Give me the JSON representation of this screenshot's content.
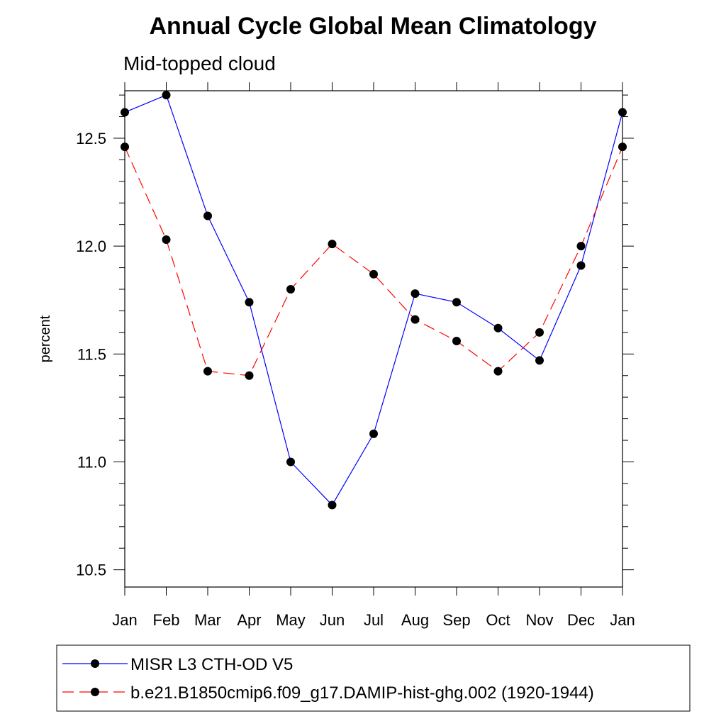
{
  "chart_data": {
    "type": "line",
    "title": "Annual Cycle Global Mean Climatology",
    "subtitle": "Mid-topped cloud",
    "xlabel": "",
    "ylabel": "percent",
    "categories": [
      "Jan",
      "Feb",
      "Mar",
      "Apr",
      "May",
      "Jun",
      "Jul",
      "Aug",
      "Sep",
      "Oct",
      "Nov",
      "Dec",
      "Jan"
    ],
    "ylim": [
      10.42,
      12.72
    ],
    "yticks": [
      10.5,
      11.0,
      11.5,
      12.0,
      12.5
    ],
    "ytick_labels": [
      "10.5",
      "11.0",
      "11.5",
      "12.0",
      "12.5"
    ],
    "series": [
      {
        "name": "MISR L3 CTH-OD V5",
        "color": "#0000ff",
        "style": "solid",
        "marker": "filled-circle",
        "values": [
          12.62,
          12.7,
          12.14,
          11.74,
          11.0,
          10.8,
          11.13,
          11.78,
          11.74,
          11.62,
          11.47,
          11.91,
          12.62
        ]
      },
      {
        "name": "b.e21.B1850cmip6.f09_g17.DAMIP-hist-ghg.002 (1920-1944)",
        "color": "#ff0000",
        "style": "dashed",
        "marker": "filled-circle",
        "values": [
          12.46,
          12.03,
          11.42,
          11.4,
          11.8,
          12.01,
          11.87,
          11.66,
          11.56,
          11.42,
          11.6,
          12.0,
          12.46
        ]
      }
    ],
    "legend_position": "bottom"
  }
}
